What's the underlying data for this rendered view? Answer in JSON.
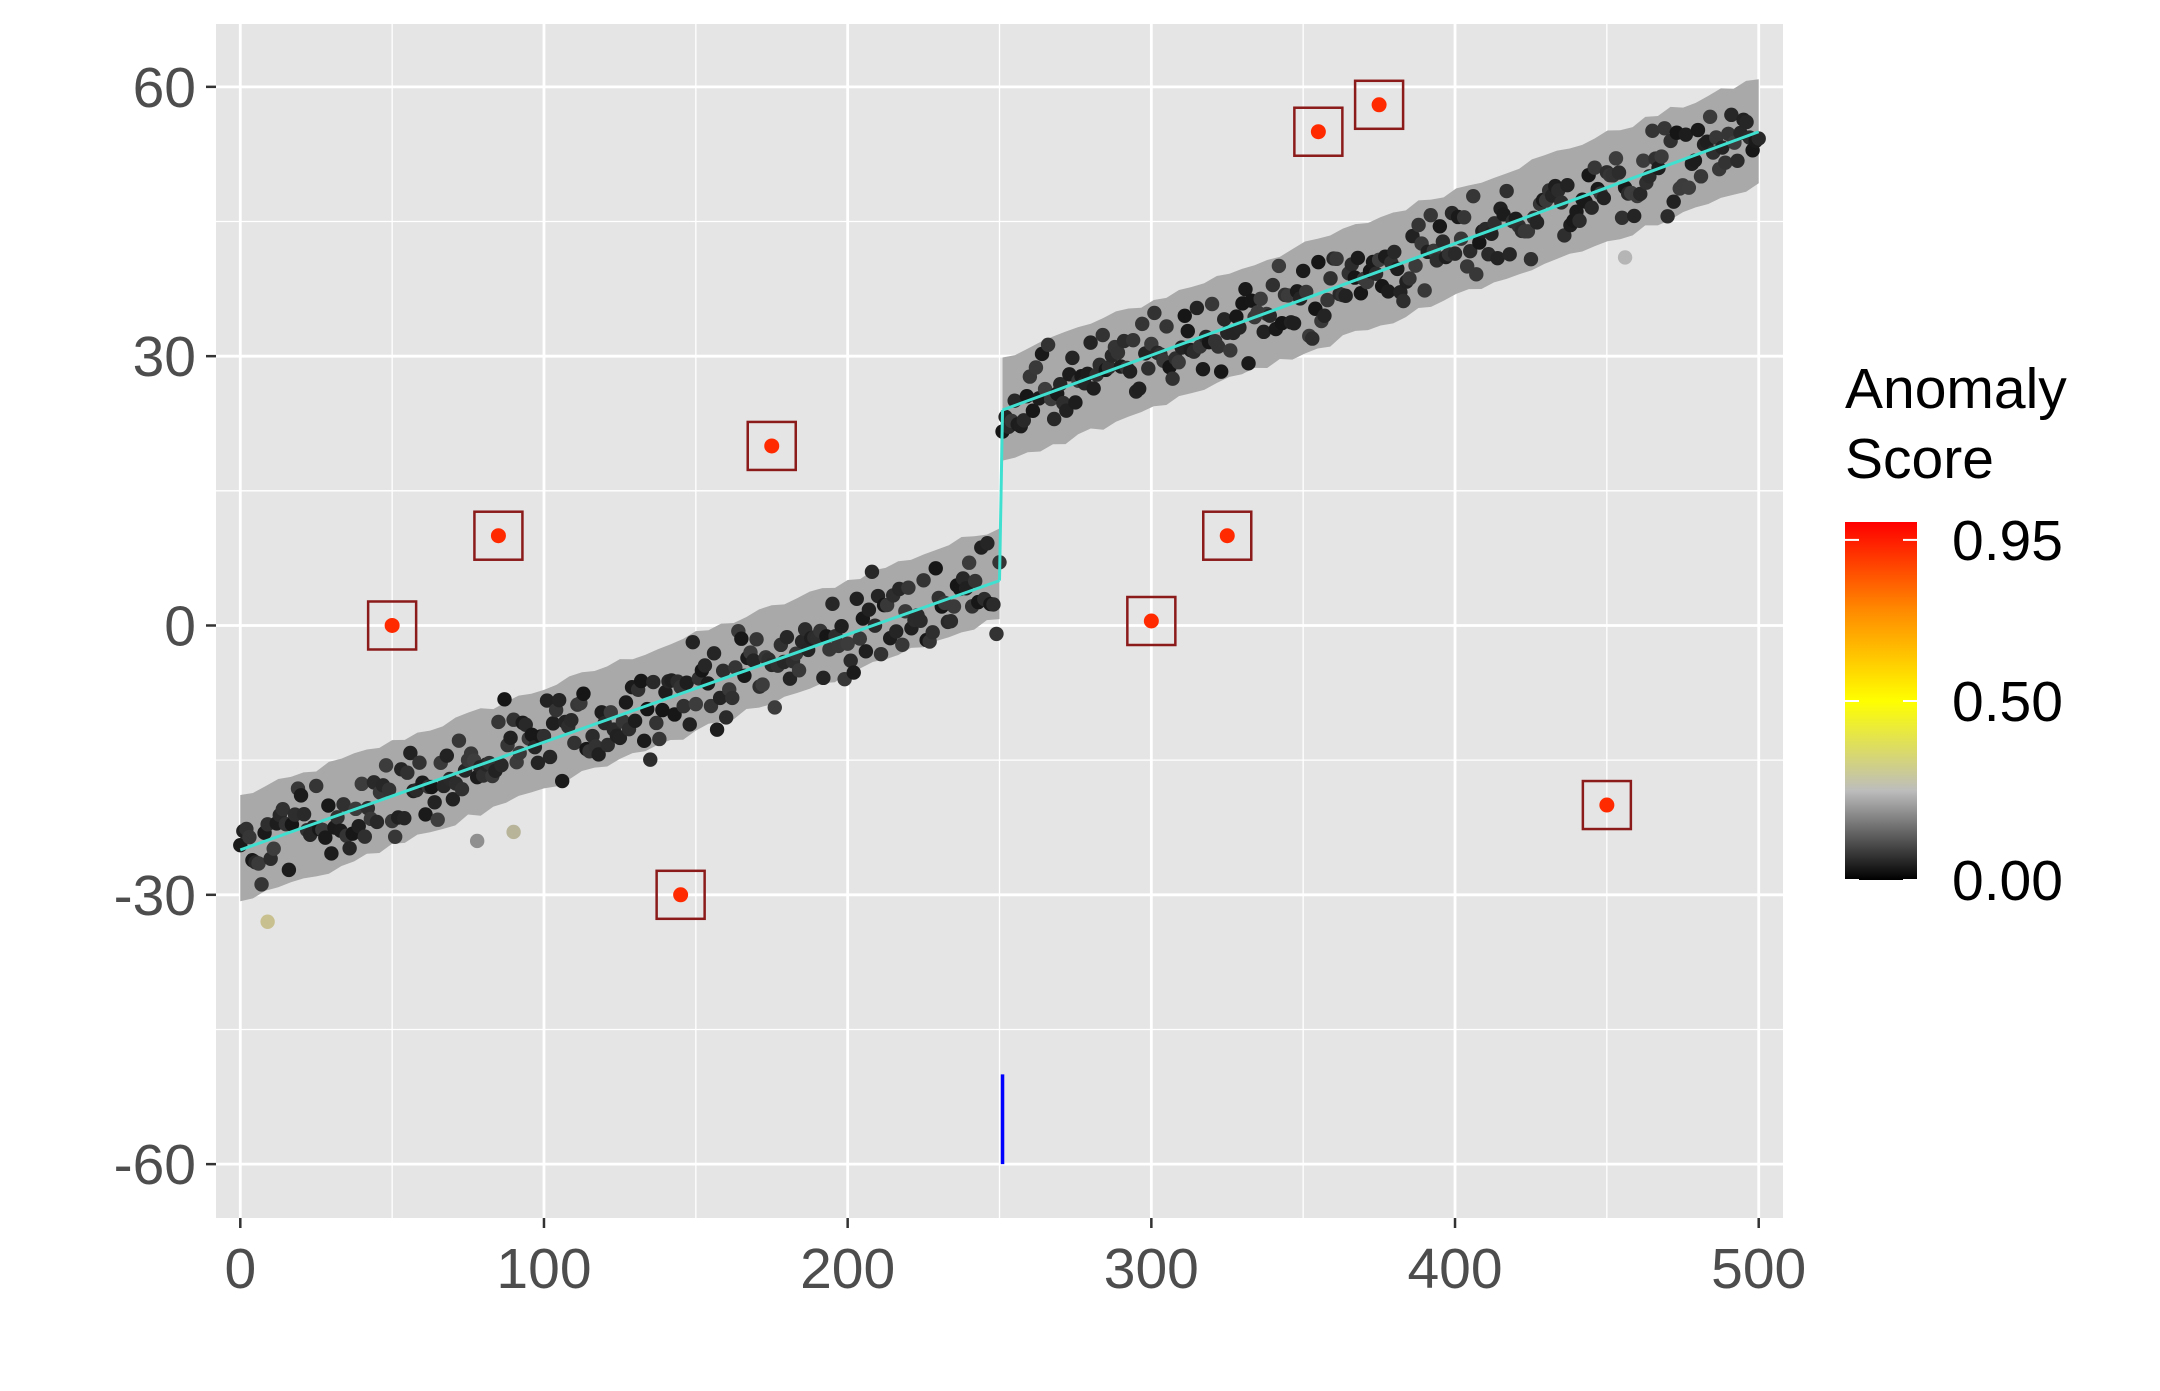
{
  "chart_data": {
    "type": "scatter",
    "title": "",
    "xlabel": "",
    "ylabel": "",
    "xlim": [
      -8,
      508
    ],
    "ylim": [
      -66,
      67
    ],
    "x_ticks": [
      0,
      100,
      200,
      300,
      400,
      500
    ],
    "x_tick_labels": [
      "0",
      "100",
      "200",
      "300",
      "400",
      "500"
    ],
    "y_ticks": [
      -60,
      -30,
      0,
      30,
      60
    ],
    "y_tick_labels": [
      "-60",
      "-30",
      "0",
      "30",
      "60"
    ],
    "y_minor_gridlines": [
      -45,
      -15,
      15,
      45
    ],
    "x_minor_gridlines": [
      50,
      150,
      250,
      350,
      450
    ],
    "grid": true,
    "background_color": "#e5e5e5",
    "grid_color": "#ffffff",
    "legend": {
      "title": "Anomaly\n Score",
      "title_lines": [
        "Anomaly",
        " Score"
      ],
      "placement": "right",
      "type": "colorbar",
      "labels": [
        "0.95",
        "0.50",
        "0.00"
      ],
      "values": [
        0.95,
        0.5,
        0.0
      ],
      "range": [
        0,
        1
      ],
      "gradient_colors": [
        "#000000",
        "#bdbdbd",
        "#ffff00",
        "#ff8c00",
        "#ff0000"
      ]
    },
    "series": [
      {
        "kind": "trend_line",
        "color": "#40e0d0",
        "segments": [
          {
            "x": [
              0,
              250
            ],
            "y": [
              -25,
              5
            ]
          },
          {
            "x": [
              251,
              500
            ],
            "y": [
              24,
              55
            ]
          }
        ],
        "jump": {
          "x": 250,
          "y": [
            5,
            24
          ]
        }
      },
      {
        "kind": "band",
        "color": "#a9a9a9",
        "segments": [
          {
            "x": [
              0,
              250
            ],
            "lower": [
              -31,
              1
            ],
            "upper": [
              -19,
              11
            ]
          },
          {
            "x": [
              251,
              500
            ],
            "lower": [
              18,
              49
            ],
            "upper": [
              30,
              61
            ]
          }
        ]
      },
      {
        "kind": "changepoint_marker",
        "color": "#0000ff",
        "x": 251,
        "y": [
          -60,
          -50
        ]
      },
      {
        "kind": "normal_points",
        "color": "#1a1a1a",
        "segments": [
          {
            "x_start": 0,
            "x_end": 250,
            "slope": 0.12,
            "intercept": -25,
            "noise": 3.4
          },
          {
            "x_start": 251,
            "x_end": 500,
            "slope": 0.124,
            "intercept": 24,
            "noise": 3.4
          }
        ]
      },
      {
        "kind": "low_score_points",
        "points": [
          {
            "x": 9,
            "y": -33,
            "score": 0.28,
            "color": "#c9c08f"
          },
          {
            "x": 78,
            "y": -24,
            "score": 0.2,
            "color": "#8f8f8f"
          },
          {
            "x": 90,
            "y": -23,
            "score": 0.26,
            "color": "#b8b49a"
          },
          {
            "x": 456,
            "y": 41,
            "score": 0.22,
            "color": "#b5b5b5"
          }
        ]
      },
      {
        "kind": "anomalies",
        "color": "#ff2a00",
        "box_color": "#8b1a1a",
        "points": [
          {
            "x": 50,
            "y": 0,
            "score": 0.95
          },
          {
            "x": 85,
            "y": 10,
            "score": 0.95
          },
          {
            "x": 145,
            "y": -30,
            "score": 0.95
          },
          {
            "x": 175,
            "y": 20,
            "score": 0.95
          },
          {
            "x": 300,
            "y": 0.5,
            "score": 0.95
          },
          {
            "x": 325,
            "y": 10,
            "score": 0.95
          },
          {
            "x": 355,
            "y": 55,
            "score": 0.95
          },
          {
            "x": 375,
            "y": 58,
            "score": 0.95
          },
          {
            "x": 450,
            "y": -20,
            "score": 0.95
          }
        ]
      }
    ]
  }
}
